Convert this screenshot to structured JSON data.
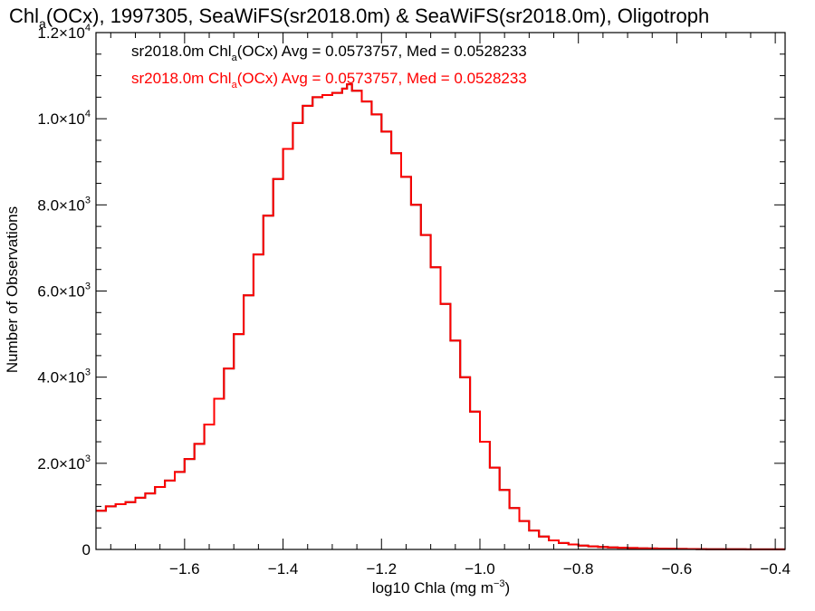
{
  "chart_data": {
    "type": "line",
    "title_parts": {
      "pre": "Chl",
      "sub": "a",
      "post": "(OCx), 1997305, SeaWiFS(sr2018.0m) & SeaWiFS(sr2018.0m), Oligotroph"
    },
    "xlabel_parts": {
      "pre": "log10 Chla (mg m",
      "sup": "−3",
      "post": ")"
    },
    "ylabel": "Number of Observations",
    "xlim": [
      -1.78,
      -0.38
    ],
    "ylim": [
      0,
      12000
    ],
    "x_ticks": [
      -1.6,
      -1.4,
      -1.2,
      -1.0,
      -0.8,
      -0.6,
      -0.4
    ],
    "x_tick_labels": [
      "−1.6",
      "−1.4",
      "−1.2",
      "−1.0",
      "−0.8",
      "−0.6",
      "−0.4"
    ],
    "y_ticks": [
      {
        "value": 0,
        "mant": "0",
        "exp": ""
      },
      {
        "value": 2000,
        "mant": "2.0×10",
        "exp": "3"
      },
      {
        "value": 4000,
        "mant": "4.0×10",
        "exp": "3"
      },
      {
        "value": 6000,
        "mant": "6.0×10",
        "exp": "3"
      },
      {
        "value": 8000,
        "mant": "8.0×10",
        "exp": "3"
      },
      {
        "value": 10000,
        "mant": "1.0×10",
        "exp": "4"
      },
      {
        "value": 12000,
        "mant": "1.2×10",
        "exp": "4"
      }
    ],
    "annotations": [
      {
        "pre": "sr2018.0m Chl",
        "sub": "a",
        "post": "(OCx) Avg = 0.0573757, Med = 0.0528233",
        "color": "#000000"
      },
      {
        "pre": "sr2018.0m Chl",
        "sub": "a",
        "post": "(OCx) Avg = 0.0573757, Med = 0.0528233",
        "color": "#ff0000"
      }
    ],
    "series": [
      {
        "color": "#000000",
        "key": "x"
      },
      {
        "color": "#ff0000",
        "key": "x"
      }
    ],
    "x": [
      -1.78,
      -1.76,
      -1.74,
      -1.72,
      -1.7,
      -1.68,
      -1.66,
      -1.64,
      -1.62,
      -1.6,
      -1.58,
      -1.56,
      -1.54,
      -1.52,
      -1.5,
      -1.48,
      -1.46,
      -1.44,
      -1.42,
      -1.4,
      -1.38,
      -1.36,
      -1.34,
      -1.32,
      -1.3,
      -1.28,
      -1.27,
      -1.26,
      -1.24,
      -1.22,
      -1.2,
      -1.18,
      -1.16,
      -1.14,
      -1.12,
      -1.1,
      -1.08,
      -1.06,
      -1.04,
      -1.02,
      -1.0,
      -0.98,
      -0.96,
      -0.94,
      -0.92,
      -0.9,
      -0.88,
      -0.86,
      -0.84,
      -0.82,
      -0.8,
      -0.78,
      -0.76,
      -0.74,
      -0.72,
      -0.7,
      -0.68,
      -0.66,
      -0.64,
      -0.62,
      -0.6,
      -0.58,
      -0.56,
      -0.54,
      -0.52,
      -0.5,
      -0.48,
      -0.46,
      -0.44,
      -0.42,
      -0.4,
      -0.38
    ],
    "y": [
      900,
      1000,
      1050,
      1100,
      1200,
      1300,
      1450,
      1600,
      1800,
      2100,
      2450,
      2900,
      3500,
      4200,
      5000,
      5900,
      6850,
      7750,
      8600,
      9300,
      9900,
      10300,
      10500,
      10550,
      10600,
      10700,
      10800,
      10650,
      10400,
      10100,
      9700,
      9200,
      8650,
      8000,
      7300,
      6550,
      5700,
      4850,
      4000,
      3200,
      2500,
      1900,
      1380,
      960,
      660,
      440,
      300,
      210,
      150,
      115,
      90,
      72,
      58,
      48,
      40,
      34,
      28,
      23,
      19,
      16,
      13,
      10,
      8,
      7,
      6,
      5,
      4,
      3,
      3,
      2,
      2,
      2
    ]
  }
}
